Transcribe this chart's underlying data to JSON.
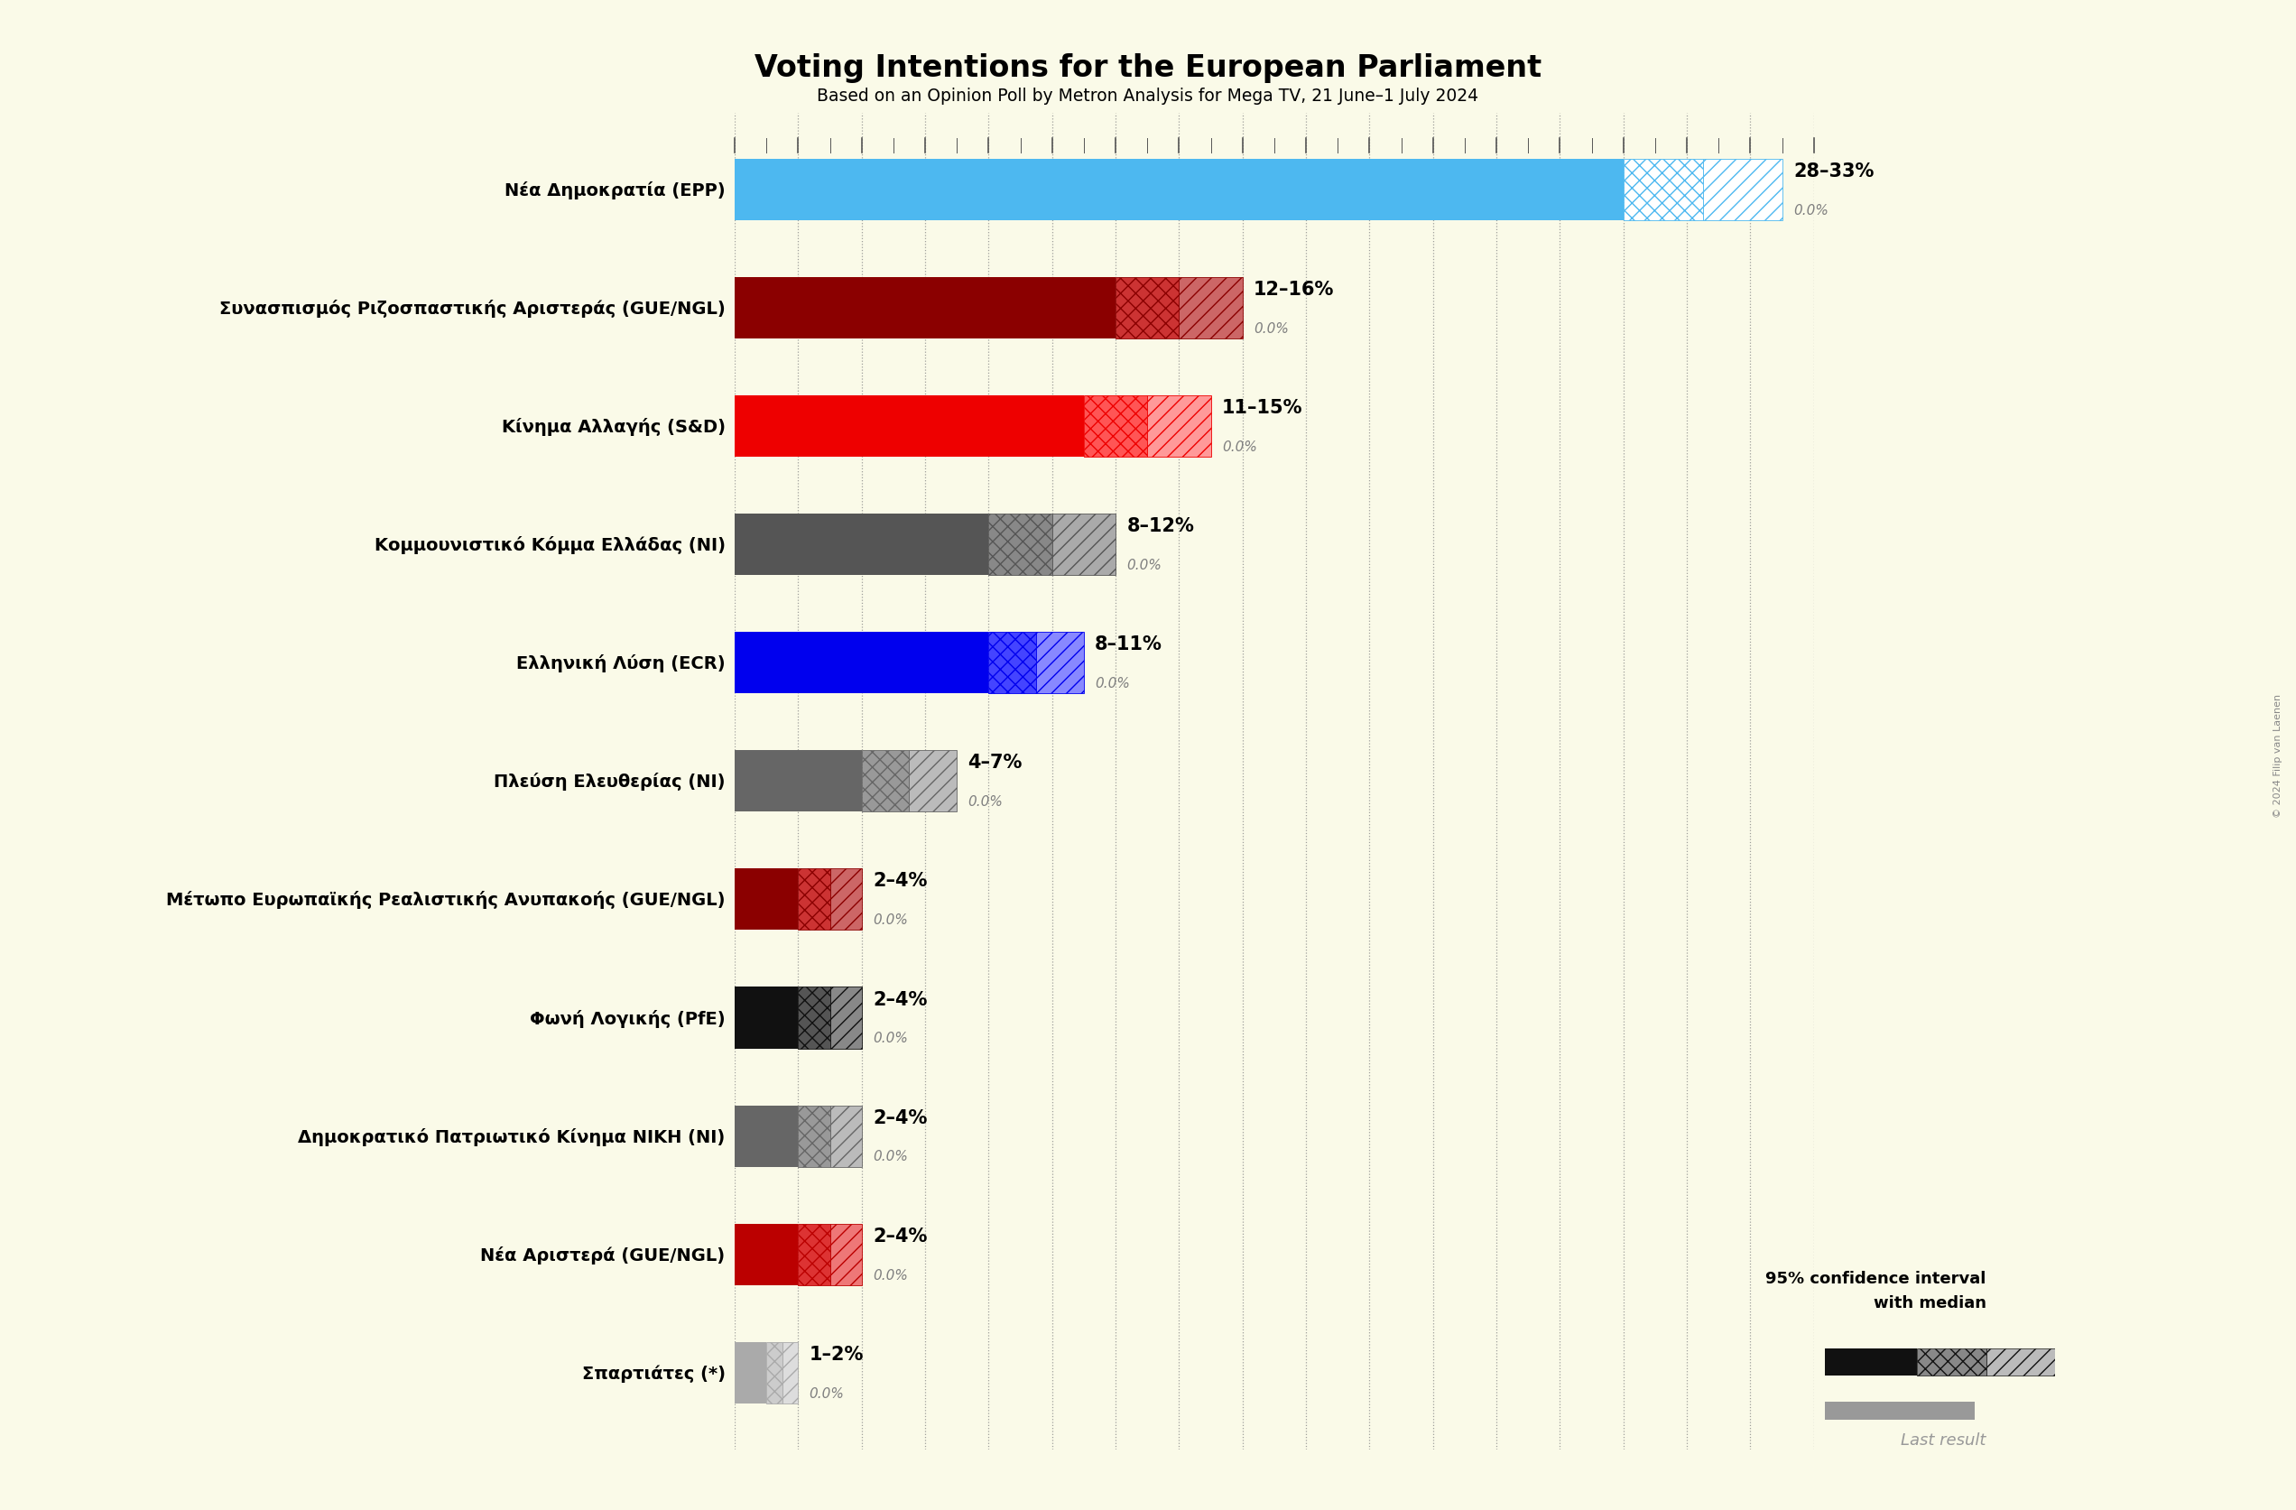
{
  "title": "Voting Intentions for the European Parliament",
  "subtitle": "Based on an Opinion Poll by Metron Analysis for Mega TV, 21 June–1 July 2024",
  "background_color": "#FAFAE8",
  "parties": [
    {
      "name": "Νέα Δημοκρατία (EPP)",
      "low": 28,
      "high": 33,
      "median": 0.0,
      "color": "#4DB8F0",
      "hatch_color1": "#FFFFFF",
      "hatch_color2": "#FFFFFF"
    },
    {
      "name": "Συνασπισμός Ριζοσπαστικής Αριστεράς (GUE/NGL)",
      "low": 12,
      "high": 16,
      "median": 0.0,
      "color": "#8B0000",
      "hatch_color1": "#CC3333",
      "hatch_color2": "#CC6666"
    },
    {
      "name": "Κίνημα Αλλαγής (S&D)",
      "low": 11,
      "high": 15,
      "median": 0.0,
      "color": "#EE0000",
      "hatch_color1": "#FF5555",
      "hatch_color2": "#FF9999"
    },
    {
      "name": "Κομμουνιστικό Κόμμα Ελλάδας (NI)",
      "low": 8,
      "high": 12,
      "median": 0.0,
      "color": "#555555",
      "hatch_color1": "#888888",
      "hatch_color2": "#AAAAAA"
    },
    {
      "name": "Ελληνική Λύση (ECR)",
      "low": 8,
      "high": 11,
      "median": 0.0,
      "color": "#0000EE",
      "hatch_color1": "#4444FF",
      "hatch_color2": "#8888FF"
    },
    {
      "name": "Πλεύση Ελευθερίας (NI)",
      "low": 4,
      "high": 7,
      "median": 0.0,
      "color": "#666666",
      "hatch_color1": "#999999",
      "hatch_color2": "#BBBBBB"
    },
    {
      "name": "Μέτωπο Ευρωπαϊκής Ρεαλιστικής Ανυπακοής (GUE/NGL)",
      "low": 2,
      "high": 4,
      "median": 0.0,
      "color": "#8B0000",
      "hatch_color1": "#CC3333",
      "hatch_color2": "#CC6666"
    },
    {
      "name": "Φωνή Λογικής (PfE)",
      "low": 2,
      "high": 4,
      "median": 0.0,
      "color": "#111111",
      "hatch_color1": "#555555",
      "hatch_color2": "#888888"
    },
    {
      "name": "Δημοκρατικό Πατριωτικό Κίνημα ΝΙΚΗ (NI)",
      "low": 2,
      "high": 4,
      "median": 0.0,
      "color": "#666666",
      "hatch_color1": "#999999",
      "hatch_color2": "#BBBBBB"
    },
    {
      "name": "Νέα Αριστερά (GUE/NGL)",
      "low": 2,
      "high": 4,
      "median": 0.0,
      "color": "#BB0000",
      "hatch_color1": "#DD3333",
      "hatch_color2": "#EE7777"
    },
    {
      "name": "Σπαρτιάτες (*)",
      "low": 1,
      "high": 2,
      "median": 0.0,
      "color": "#AAAAAA",
      "hatch_color1": "#CCCCCC",
      "hatch_color2": "#DDDDDD"
    }
  ],
  "xlim": [
    0,
    34
  ],
  "xtick_interval": 2,
  "legend_text1": "95% confidence interval",
  "legend_text2": "with median",
  "legend_text3": "Last result",
  "copyright": "© 2024 Filip van Laenen"
}
